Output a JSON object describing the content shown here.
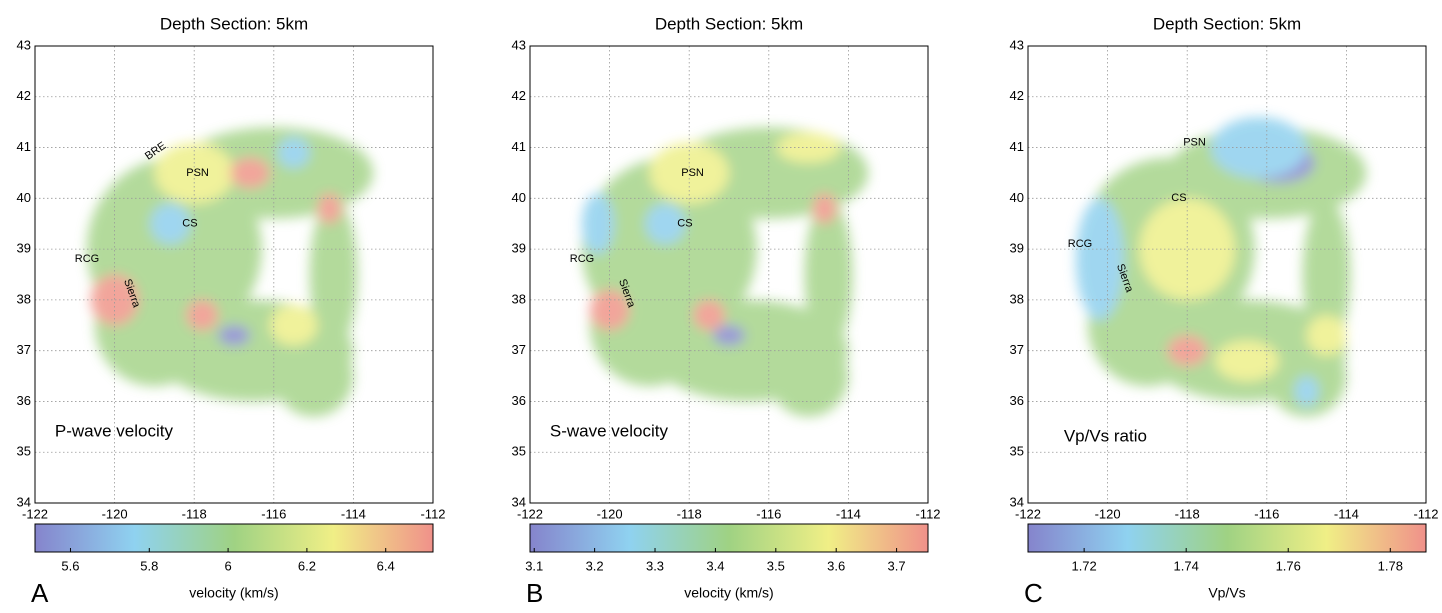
{
  "chart_data": [
    {
      "type": "map",
      "title": "Depth Section: 5km",
      "panel_label": "A",
      "xlim": [
        -122,
        -112
      ],
      "xticks": [
        -122,
        -120,
        -118,
        -116,
        -114,
        -112
      ],
      "ylim": [
        34,
        43
      ],
      "yticks": [
        34,
        35,
        36,
        37,
        38,
        39,
        40,
        41,
        42,
        43
      ],
      "grid": true,
      "annotations": [
        "BRE",
        "PSN",
        "CS",
        "RCG",
        "Sierra",
        "P-wave velocity"
      ],
      "colorbar": {
        "label": "velocity (km/s)",
        "clim": [
          5.51,
          6.52
        ],
        "ticks": [
          5.6,
          5.8,
          6,
          6.2,
          6.4
        ]
      }
    },
    {
      "type": "map",
      "title": "Depth Section: 5km",
      "panel_label": "B",
      "xlim": [
        -122,
        -112
      ],
      "xticks": [
        -122,
        -120,
        -118,
        -116,
        -114,
        -112
      ],
      "ylim": [
        34,
        43
      ],
      "yticks": [
        34,
        35,
        36,
        37,
        38,
        39,
        40,
        41,
        42,
        43
      ],
      "grid": true,
      "annotations": [
        "PSN",
        "CS",
        "RCG",
        "Sierra",
        "S-wave velocity"
      ],
      "colorbar": {
        "label": "velocity (km/s)",
        "clim": [
          3.093,
          3.752
        ],
        "ticks": [
          3.1,
          3.2,
          3.3,
          3.4,
          3.5,
          3.6,
          3.7
        ]
      }
    },
    {
      "type": "map",
      "title": "Depth Section: 5km",
      "panel_label": "C",
      "xlim": [
        -122,
        -112
      ],
      "xticks": [
        -122,
        -120,
        -118,
        -116,
        -114,
        -112
      ],
      "ylim": [
        34,
        43
      ],
      "yticks": [
        34,
        35,
        36,
        37,
        38,
        39,
        40,
        41,
        42,
        43
      ],
      "grid": true,
      "annotations": [
        "PSN",
        "CS",
        "RCG",
        "Sierra",
        "Vp/Vs ratio"
      ],
      "colorbar": {
        "label": "Vp/Vs",
        "clim": [
          1.709,
          1.787
        ],
        "ticks": [
          1.72,
          1.74,
          1.76,
          1.78
        ]
      }
    }
  ]
}
